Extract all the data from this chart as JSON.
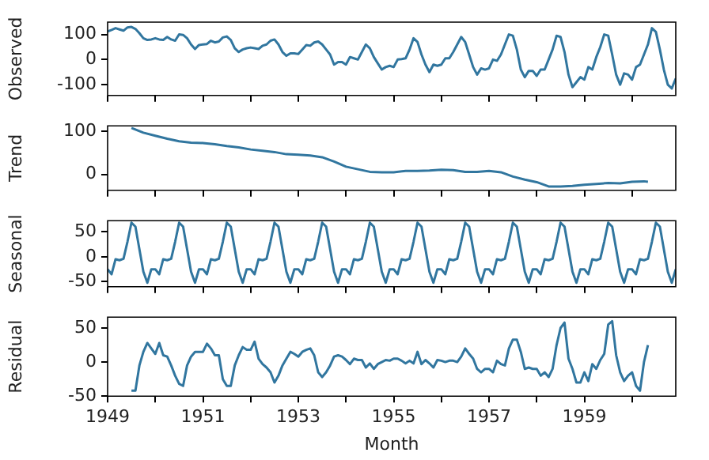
{
  "chart_data": [
    {
      "type": "line",
      "ylabel": "Observed",
      "color": "#31769f",
      "grid": false,
      "tick_labels": "y",
      "xlim": [
        "1949-01",
        "1960-12"
      ],
      "xticks": [
        "1949",
        {
          "value": "1950",
          "label": null
        },
        "1951",
        {
          "value": "1952",
          "label": null
        },
        "1953",
        {
          "value": "1954",
          "label": null
        },
        "1955",
        {
          "value": "1956",
          "label": null
        },
        "1957",
        {
          "value": "1958",
          "label": null
        },
        "1959",
        {
          "value": "1960",
          "label": null
        }
      ],
      "ylim": [
        -143,
        149
      ],
      "yticks": [
        -100,
        0,
        100
      ],
      "x": [
        "1949-01",
        "1949-02",
        "1949-03",
        "1949-04",
        "1949-05",
        "1949-06",
        "1949-07",
        "1949-08",
        "1949-09",
        "1949-10",
        "1949-11",
        "1949-12",
        "1950-01",
        "1950-02",
        "1950-03",
        "1950-04",
        "1950-05",
        "1950-06",
        "1950-07",
        "1950-08",
        "1950-09",
        "1950-10",
        "1950-11",
        "1950-12",
        "1951-01",
        "1951-02",
        "1951-03",
        "1951-04",
        "1951-05",
        "1951-06",
        "1951-07",
        "1951-08",
        "1951-09",
        "1951-10",
        "1951-11",
        "1951-12",
        "1952-01",
        "1952-02",
        "1952-03",
        "1952-04",
        "1952-05",
        "1952-06",
        "1952-07",
        "1952-08",
        "1952-09",
        "1952-10",
        "1952-11",
        "1952-12",
        "1953-01",
        "1953-02",
        "1953-03",
        "1953-04",
        "1953-05",
        "1953-06",
        "1953-07",
        "1953-08",
        "1953-09",
        "1953-10",
        "1953-11",
        "1953-12",
        "1954-01",
        "1954-02",
        "1954-03",
        "1954-04",
        "1954-05",
        "1954-06",
        "1954-07",
        "1954-08",
        "1954-09",
        "1954-10",
        "1954-11",
        "1954-12",
        "1955-01",
        "1955-02",
        "1955-03",
        "1955-04",
        "1955-05",
        "1955-06",
        "1955-07",
        "1955-08",
        "1955-09",
        "1955-10",
        "1955-11",
        "1955-12",
        "1956-01",
        "1956-02",
        "1956-03",
        "1956-04",
        "1956-05",
        "1956-06",
        "1956-07",
        "1956-08",
        "1956-09",
        "1956-10",
        "1956-11",
        "1956-12",
        "1957-01",
        "1957-02",
        "1957-03",
        "1957-04",
        "1957-05",
        "1957-06",
        "1957-07",
        "1957-08",
        "1957-09",
        "1957-10",
        "1957-11",
        "1957-12",
        "1958-01",
        "1958-02",
        "1958-03",
        "1958-04",
        "1958-05",
        "1958-06",
        "1958-07",
        "1958-08",
        "1958-09",
        "1958-10",
        "1958-11",
        "1958-12",
        "1959-01",
        "1959-02",
        "1959-03",
        "1959-04",
        "1959-05",
        "1959-06",
        "1959-07",
        "1959-08",
        "1959-09",
        "1959-10",
        "1959-11",
        "1959-12",
        "1960-01",
        "1960-02",
        "1960-03",
        "1960-04",
        "1960-05",
        "1960-06",
        "1960-07",
        "1960-08",
        "1960-09",
        "1960-10",
        "1960-11",
        "1960-12"
      ],
      "values": [
        112,
        118,
        125,
        120,
        115,
        128,
        130,
        122,
        105,
        85,
        78,
        80,
        85,
        80,
        78,
        90,
        80,
        75,
        100,
        98,
        85,
        60,
        42,
        58,
        60,
        62,
        75,
        68,
        72,
        88,
        92,
        78,
        45,
        30,
        40,
        45,
        48,
        45,
        42,
        55,
        60,
        75,
        80,
        60,
        30,
        15,
        25,
        25,
        22,
        40,
        58,
        55,
        68,
        72,
        60,
        40,
        20,
        -20,
        -10,
        -10,
        -20,
        10,
        5,
        0,
        30,
        60,
        45,
        10,
        -15,
        -40,
        -30,
        -25,
        -30,
        0,
        2,
        5,
        40,
        85,
        70,
        20,
        -20,
        -50,
        -20,
        -25,
        -20,
        5,
        5,
        30,
        60,
        90,
        70,
        20,
        -30,
        -60,
        -35,
        -40,
        -35,
        0,
        -5,
        20,
        60,
        100,
        95,
        40,
        -40,
        -70,
        -45,
        -45,
        -65,
        -40,
        -40,
        0,
        40,
        95,
        90,
        30,
        -60,
        -110,
        -90,
        -70,
        -80,
        -30,
        -40,
        10,
        50,
        100,
        95,
        20,
        -60,
        -100,
        -55,
        -60,
        -80,
        -30,
        -20,
        20,
        60,
        125,
        110,
        40,
        -40,
        -100,
        -115,
        -75
      ]
    },
    {
      "type": "line",
      "ylabel": "Trend",
      "color": "#31769f",
      "grid": false,
      "tick_labels": "y",
      "xlim": [
        "1949-01",
        "1960-12"
      ],
      "xticks": [
        "1949",
        {
          "value": "1950",
          "label": null
        },
        "1951",
        {
          "value": "1952",
          "label": null
        },
        "1953",
        {
          "value": "1954",
          "label": null
        },
        "1955",
        {
          "value": "1956",
          "label": null
        },
        "1957",
        {
          "value": "1958",
          "label": null
        },
        "1959",
        {
          "value": "1960",
          "label": null
        }
      ],
      "ylim": [
        -37,
        113
      ],
      "yticks": [
        0,
        100
      ],
      "x": [
        "1949-07",
        "1949-10",
        "1950-01",
        "1950-04",
        "1950-07",
        "1950-10",
        "1951-01",
        "1951-04",
        "1951-07",
        "1951-10",
        "1952-01",
        "1952-04",
        "1952-07",
        "1952-10",
        "1953-01",
        "1953-04",
        "1953-07",
        "1953-10",
        "1954-01",
        "1954-04",
        "1954-07",
        "1954-10",
        "1955-01",
        "1955-04",
        "1955-07",
        "1955-10",
        "1956-01",
        "1956-04",
        "1956-07",
        "1956-10",
        "1957-01",
        "1957-04",
        "1957-07",
        "1957-10",
        "1958-01",
        "1958-04",
        "1958-07",
        "1958-10",
        "1959-01",
        "1959-04",
        "1959-07",
        "1959-10",
        "1960-01",
        "1960-04",
        "1960-05"
      ],
      "values": [
        108,
        97,
        90,
        83,
        77,
        74,
        73,
        70,
        66,
        63,
        58,
        55,
        52,
        47,
        46,
        44,
        40,
        30,
        18,
        12,
        6,
        5,
        5,
        8,
        8,
        9,
        11,
        10,
        6,
        6,
        8,
        5,
        -5,
        -12,
        -18,
        -28,
        -28,
        -27,
        -24,
        -22,
        -20,
        -21,
        -17,
        -16,
        -17
      ]
    },
    {
      "type": "line",
      "ylabel": "Seasonal",
      "color": "#31769f",
      "grid": false,
      "tick_labels": "y",
      "xlim": [
        "1949-01",
        "1960-12"
      ],
      "xticks": [
        "1949",
        {
          "value": "1950",
          "label": null
        },
        "1951",
        {
          "value": "1952",
          "label": null
        },
        "1953",
        {
          "value": "1954",
          "label": null
        },
        "1955",
        {
          "value": "1956",
          "label": null
        },
        "1957",
        {
          "value": "1958",
          "label": null
        },
        "1959",
        {
          "value": "1960",
          "label": null
        }
      ],
      "ylim": [
        -60,
        72
      ],
      "yticks": [
        -50,
        0,
        50
      ],
      "x": [
        "1949-01",
        "1949-02",
        "1949-03",
        "1949-04",
        "1949-05",
        "1949-06",
        "1949-07",
        "1949-08",
        "1949-09",
        "1949-10",
        "1949-11",
        "1949-12",
        "1950-01",
        "1950-02",
        "1950-03",
        "1950-04",
        "1950-05",
        "1950-06",
        "1950-07",
        "1950-08",
        "1950-09",
        "1950-10",
        "1950-11",
        "1950-12",
        "1951-01",
        "1951-02",
        "1951-03",
        "1951-04",
        "1951-05",
        "1951-06",
        "1951-07",
        "1951-08",
        "1951-09",
        "1951-10",
        "1951-11",
        "1951-12",
        "1952-01",
        "1952-02",
        "1952-03",
        "1952-04",
        "1952-05",
        "1952-06",
        "1952-07",
        "1952-08",
        "1952-09",
        "1952-10",
        "1952-11",
        "1952-12",
        "1953-01",
        "1953-02",
        "1953-03",
        "1953-04",
        "1953-05",
        "1953-06",
        "1953-07",
        "1953-08",
        "1953-09",
        "1953-10",
        "1953-11",
        "1953-12",
        "1954-01",
        "1954-02",
        "1954-03",
        "1954-04",
        "1954-05",
        "1954-06",
        "1954-07",
        "1954-08",
        "1954-09",
        "1954-10",
        "1954-11",
        "1954-12",
        "1955-01",
        "1955-02",
        "1955-03",
        "1955-04",
        "1955-05",
        "1955-06",
        "1955-07",
        "1955-08",
        "1955-09",
        "1955-10",
        "1955-11",
        "1955-12",
        "1956-01",
        "1956-02",
        "1956-03",
        "1956-04",
        "1956-05",
        "1956-06",
        "1956-07",
        "1956-08",
        "1956-09",
        "1956-10",
        "1956-11",
        "1956-12",
        "1957-01",
        "1957-02",
        "1957-03",
        "1957-04",
        "1957-05",
        "1957-06",
        "1957-07",
        "1957-08",
        "1957-09",
        "1957-10",
        "1957-11",
        "1957-12",
        "1958-01",
        "1958-02",
        "1958-03",
        "1958-04",
        "1958-05",
        "1958-06",
        "1958-07",
        "1958-08",
        "1958-09",
        "1958-10",
        "1958-11",
        "1958-12",
        "1959-01",
        "1959-02",
        "1959-03",
        "1959-04",
        "1959-05",
        "1959-06",
        "1959-07",
        "1959-08",
        "1959-09",
        "1959-10",
        "1959-11",
        "1959-12",
        "1960-01",
        "1960-02",
        "1960-03",
        "1960-04",
        "1960-05",
        "1960-06",
        "1960-07",
        "1960-08",
        "1960-09",
        "1960-10",
        "1960-11",
        "1960-12"
      ],
      "values": [
        -25,
        -35,
        -5,
        -7,
        -4,
        30,
        68,
        60,
        15,
        -30,
        -52,
        -25,
        -25,
        -35,
        -5,
        -7,
        -4,
        30,
        68,
        60,
        15,
        -30,
        -52,
        -25,
        -25,
        -35,
        -5,
        -7,
        -4,
        30,
        68,
        60,
        15,
        -30,
        -52,
        -25,
        -25,
        -35,
        -5,
        -7,
        -4,
        30,
        68,
        60,
        15,
        -30,
        -52,
        -25,
        -25,
        -35,
        -5,
        -7,
        -4,
        30,
        68,
        60,
        15,
        -30,
        -52,
        -25,
        -25,
        -35,
        -5,
        -7,
        -4,
        30,
        68,
        60,
        15,
        -30,
        -52,
        -25,
        -25,
        -35,
        -5,
        -7,
        -4,
        30,
        68,
        60,
        15,
        -30,
        -52,
        -25,
        -25,
        -35,
        -5,
        -7,
        -4,
        30,
        68,
        60,
        15,
        -30,
        -52,
        -25,
        -25,
        -35,
        -5,
        -7,
        -4,
        30,
        68,
        60,
        15,
        -30,
        -52,
        -25,
        -25,
        -35,
        -5,
        -7,
        -4,
        30,
        68,
        60,
        15,
        -30,
        -52,
        -25,
        -25,
        -35,
        -5,
        -7,
        -4,
        30,
        68,
        60,
        15,
        -30,
        -52,
        -25,
        -25,
        -35,
        -5,
        -7,
        -4,
        30,
        68,
        60,
        15,
        -30,
        -52,
        -25
      ]
    },
    {
      "type": "line",
      "ylabel": "Residual",
      "xlabel": "Month",
      "color": "#31769f",
      "grid": false,
      "xlim": [
        "1949-01",
        "1960-12"
      ],
      "xticks": [
        "1949",
        {
          "value": "1950",
          "label": null
        },
        "1951",
        {
          "value": "1952",
          "label": null
        },
        "1953",
        {
          "value": "1954",
          "label": null
        },
        "1955",
        {
          "value": "1956",
          "label": null
        },
        "1957",
        {
          "value": "1958",
          "label": null
        },
        "1959",
        {
          "value": "1960",
          "label": null
        }
      ],
      "ylim": [
        -50,
        66
      ],
      "yticks": [
        -50,
        0,
        50
      ],
      "x": [
        "1949-07",
        "1949-08",
        "1949-09",
        "1949-10",
        "1949-11",
        "1949-12",
        "1950-01",
        "1950-02",
        "1950-03",
        "1950-04",
        "1950-05",
        "1950-06",
        "1950-07",
        "1950-08",
        "1950-09",
        "1950-10",
        "1950-11",
        "1950-12",
        "1951-01",
        "1951-02",
        "1951-03",
        "1951-04",
        "1951-05",
        "1951-06",
        "1951-07",
        "1951-08",
        "1951-09",
        "1951-10",
        "1951-11",
        "1951-12",
        "1952-01",
        "1952-02",
        "1952-03",
        "1952-04",
        "1952-05",
        "1952-06",
        "1952-07",
        "1952-08",
        "1952-09",
        "1952-10",
        "1952-11",
        "1952-12",
        "1953-01",
        "1953-02",
        "1953-03",
        "1953-04",
        "1953-05",
        "1953-06",
        "1953-07",
        "1953-08",
        "1953-09",
        "1953-10",
        "1953-11",
        "1953-12",
        "1954-01",
        "1954-02",
        "1954-03",
        "1954-04",
        "1954-05",
        "1954-06",
        "1954-07",
        "1954-08",
        "1954-09",
        "1954-10",
        "1954-11",
        "1954-12",
        "1955-01",
        "1955-02",
        "1955-03",
        "1955-04",
        "1955-05",
        "1955-06",
        "1955-07",
        "1955-08",
        "1955-09",
        "1955-10",
        "1955-11",
        "1955-12",
        "1956-01",
        "1956-02",
        "1956-03",
        "1956-04",
        "1956-05",
        "1956-06",
        "1956-07",
        "1956-08",
        "1956-09",
        "1956-10",
        "1956-11",
        "1956-12",
        "1957-01",
        "1957-02",
        "1957-03",
        "1957-04",
        "1957-05",
        "1957-06",
        "1957-07",
        "1957-08",
        "1957-09",
        "1957-10",
        "1957-11",
        "1957-12",
        "1958-01",
        "1958-02",
        "1958-03",
        "1958-04",
        "1958-05",
        "1958-06",
        "1958-07",
        "1958-08",
        "1958-09",
        "1958-10",
        "1958-11",
        "1958-12",
        "1959-01",
        "1959-02",
        "1959-03",
        "1959-04",
        "1959-05",
        "1959-06",
        "1959-07",
        "1959-08",
        "1959-09",
        "1959-10",
        "1959-11",
        "1959-12",
        "1960-01",
        "1960-02",
        "1960-03",
        "1960-04",
        "1960-05"
      ],
      "values": [
        -42,
        -42,
        -5,
        15,
        28,
        20,
        12,
        28,
        10,
        8,
        -5,
        -20,
        -32,
        -35,
        -5,
        8,
        15,
        15,
        15,
        27,
        20,
        10,
        10,
        -25,
        -35,
        -35,
        -5,
        10,
        22,
        18,
        18,
        30,
        5,
        -3,
        -8,
        -15,
        -30,
        -20,
        -5,
        5,
        15,
        12,
        8,
        15,
        18,
        20,
        10,
        -15,
        -22,
        -15,
        -5,
        8,
        10,
        8,
        3,
        -3,
        5,
        3,
        3,
        -8,
        -2,
        -10,
        -3,
        0,
        3,
        2,
        5,
        5,
        2,
        -2,
        2,
        -2,
        15,
        -3,
        3,
        -2,
        -8,
        3,
        2,
        0,
        2,
        2,
        0,
        8,
        20,
        12,
        5,
        -10,
        -15,
        -10,
        -10,
        -15,
        2,
        -3,
        -5,
        20,
        33,
        33,
        15,
        -10,
        -8,
        -10,
        -10,
        -20,
        -15,
        -22,
        -10,
        25,
        50,
        58,
        5,
        -10,
        -30,
        -30,
        -15,
        -28,
        -3,
        -10,
        3,
        12,
        55,
        60,
        10,
        -15,
        -28,
        -20,
        -15,
        -35,
        -42,
        0,
        25
      ]
    }
  ]
}
